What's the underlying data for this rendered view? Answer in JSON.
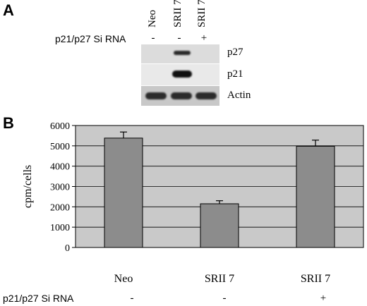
{
  "panel_a": {
    "label": "A",
    "lanes": [
      "Neo",
      "SRII 7",
      "SRII 7"
    ],
    "sirna_label": "p21/p27 Si RNA",
    "sirna_signs": [
      "-",
      "-",
      "+"
    ],
    "bands": [
      "p27",
      "p21",
      "Actin"
    ]
  },
  "panel_b": {
    "label": "B",
    "sirna_label": "p21/p27 Si RNA",
    "sirna_signs": [
      "-",
      "-",
      "+"
    ]
  },
  "chart_data": {
    "type": "bar",
    "categories": [
      "Neo",
      "SRII 7",
      "SRII 7"
    ],
    "values": [
      5380,
      2150,
      4980
    ],
    "errors": [
      300,
      150,
      300
    ],
    "ylabel": "cpm/cells",
    "ylim": [
      0,
      6000
    ],
    "yticks": [
      0,
      1000,
      2000,
      3000,
      4000,
      5000,
      6000
    ],
    "grid": true,
    "colors": {
      "bar": "#8c8c8c",
      "plot_bg": "#c9c9c9"
    }
  }
}
